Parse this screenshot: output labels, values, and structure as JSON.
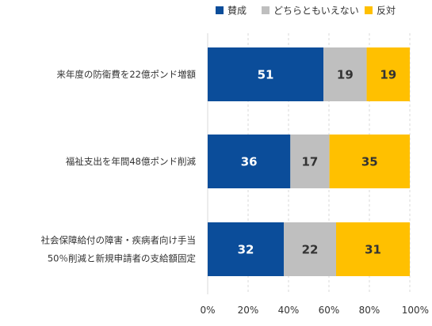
{
  "chart_data": {
    "type": "bar",
    "orientation": "horizontal",
    "stacked": true,
    "percent_scale": true,
    "categories": [
      [
        "来年度の防衛費を22億ポンド増額"
      ],
      [
        "福祉支出を年間48億ポンド削減"
      ],
      [
        "社会保障給付の障害・疾病者向け手当",
        "50％削減と新規申請者の支給額固定"
      ]
    ],
    "series": [
      {
        "name": "賛成",
        "values": [
          51,
          36,
          32
        ],
        "color": "#0b4d9a",
        "label_color": "#ffffff"
      },
      {
        "name": "どちらともいえない",
        "values": [
          19,
          17,
          22
        ],
        "color": "#bfbfbf",
        "label_color": "#333333"
      },
      {
        "name": "反対",
        "values": [
          19,
          35,
          31
        ],
        "color": "#ffc000",
        "label_color": "#333333"
      }
    ],
    "xticks": [
      "0%",
      "20%",
      "40%",
      "60%",
      "80%",
      "100%"
    ],
    "xlim": [
      0,
      100
    ],
    "grid": true,
    "legend_position": "top-right"
  }
}
